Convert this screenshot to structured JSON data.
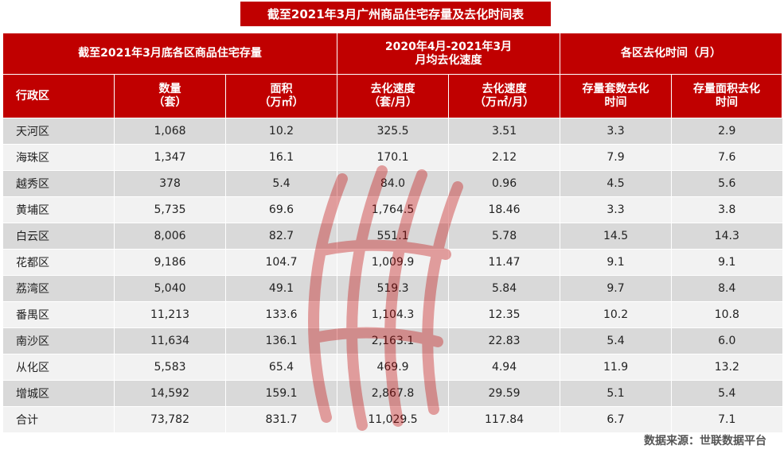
{
  "title": "截至2021年3月广州商品住宅存量及去化时间表",
  "groups": {
    "stock": "截至2021年3月底各区商品住宅存量",
    "speed_line1": "2020年4月-2021年3月",
    "speed_line2": "月均去化速度",
    "time": "各区去化时间（月）"
  },
  "columns": {
    "district": "行政区",
    "count_l1": "数量",
    "count_l2": "（套）",
    "area_l1": "面积",
    "area_l2": "（万㎡）",
    "speed_units_l1": "去化速度",
    "speed_units_l2": "（套/月）",
    "speed_area_l1": "去化速度",
    "speed_area_l2": "（万㎡/月）",
    "time_units_l1": "存量套数去化",
    "time_units_l2": "时间",
    "time_area_l1": "存量面积去化",
    "time_area_l2": "时间"
  },
  "rows": [
    [
      "天河区",
      "1,068",
      "10.2",
      "325.5",
      "3.51",
      "3.3",
      "2.9"
    ],
    [
      "海珠区",
      "1,347",
      "16.1",
      "170.1",
      "2.12",
      "7.9",
      "7.6"
    ],
    [
      "越秀区",
      "378",
      "5.4",
      "84.0",
      "0.96",
      "4.5",
      "5.6"
    ],
    [
      "黄埔区",
      "5,735",
      "69.6",
      "1,764.5",
      "18.46",
      "3.3",
      "3.8"
    ],
    [
      "白云区",
      "8,006",
      "82.7",
      "551.1",
      "5.78",
      "14.5",
      "14.3"
    ],
    [
      "花都区",
      "9,186",
      "104.7",
      "1,009.9",
      "11.47",
      "9.1",
      "9.1"
    ],
    [
      "荔湾区",
      "5,040",
      "49.1",
      "519.3",
      "5.84",
      "9.7",
      "8.4"
    ],
    [
      "番禺区",
      "11,213",
      "133.6",
      "1,104.3",
      "12.35",
      "10.2",
      "10.8"
    ],
    [
      "南沙区",
      "11,634",
      "136.1",
      "2,163.1",
      "22.83",
      "5.4",
      "6.0"
    ],
    [
      "从化区",
      "5,583",
      "65.4",
      "469.9",
      "4.94",
      "11.9",
      "13.2"
    ],
    [
      "增城区",
      "14,592",
      "159.1",
      "2,867.8",
      "29.59",
      "5.1",
      "5.4"
    ],
    [
      "合计",
      "73,782",
      "831.7",
      "11,029.5",
      "117.84",
      "6.7",
      "7.1"
    ]
  ],
  "source": "数据来源：世联数据平台",
  "colors": {
    "header_bg": "#c00000",
    "row_dark": "#d9d9d9",
    "row_light": "#f2f2f2",
    "watermark": "#c00000"
  }
}
